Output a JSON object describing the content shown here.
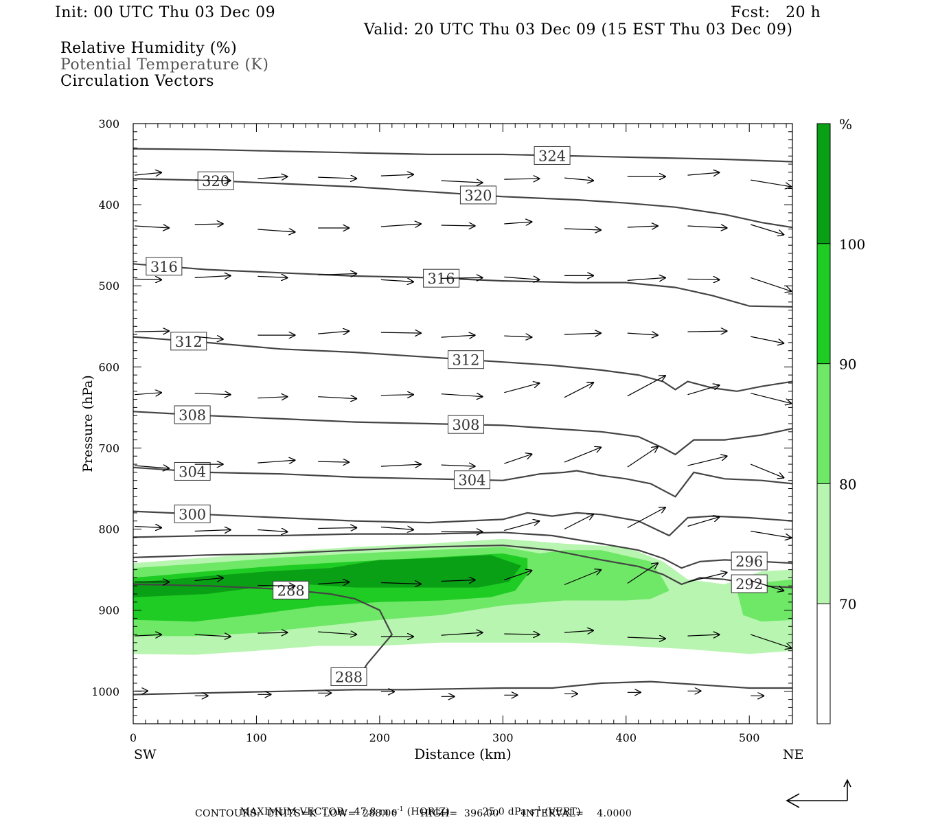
{
  "header": {
    "init": "Init: 00 UTC Thu 03 Dec 09",
    "fcst": "Fcst:   20 h",
    "valid": "Valid: 20 UTC Thu 03 Dec 09 (15 EST Thu 03 Dec 09)"
  },
  "legend": {
    "fields": [
      "Relative Humidity (%)",
      "Potential Temperature (K)",
      "Circulation Vectors"
    ]
  },
  "footer": {
    "max_vector_label": "MAXIMUM VECTOR:",
    "max_vector_horiz_value": "47.8",
    "max_vector_horiz_unit": "m s",
    "max_vector_horiz_kind": "(HORIZ)",
    "max_vector_vert_value": "25.0",
    "max_vector_vert_unit": "dPa s",
    "max_vector_vert_kind": "(VERT)",
    "unit_exponent": "-1",
    "contours": "CONTOURS:  UNITS=K  LOW=  288.00       HIGH=  396.00       INTERVAL=    4.0000"
  },
  "colors": {
    "rh_70_80": "#b8f5b0",
    "rh_80_90": "#6ee866",
    "rh_90_100": "#1fcc24",
    "rh_100": "#0aa016",
    "contour": "#444444"
  },
  "chart_data": {
    "type": "cross-section",
    "xlabel": "Distance (km)",
    "ylabel": "Pressure (hPa)",
    "x_left_label": "SW",
    "x_right_label": "NE",
    "xlim": [
      0,
      535
    ],
    "ylim": [
      1040,
      300
    ],
    "x_ticks": [
      0,
      100,
      200,
      300,
      400,
      500
    ],
    "y_ticks": [
      300,
      400,
      500,
      600,
      700,
      800,
      900,
      1000
    ],
    "colorbar": {
      "unit": "%",
      "levels": [
        70,
        80,
        90,
        100
      ],
      "tick_labels": [
        "70",
        "80",
        "90",
        "100"
      ],
      "bands": [
        {
          "from": 60,
          "to": 70,
          "color": "#ffffff"
        },
        {
          "from": 70,
          "to": 80,
          "color": "#b8f5b0"
        },
        {
          "from": 80,
          "to": 90,
          "color": "#6ee866"
        },
        {
          "from": 90,
          "to": 100,
          "color": "#1fcc24"
        },
        {
          "from": 100,
          "to": 110,
          "color": "#0aa016"
        }
      ]
    },
    "rh_regions": [
      {
        "level": 70,
        "color": "#b8f5b0",
        "top": [
          [
            0,
            842
          ],
          [
            60,
            835
          ],
          [
            120,
            828
          ],
          [
            180,
            822
          ],
          [
            240,
            818
          ],
          [
            300,
            812
          ],
          [
            350,
            818
          ],
          [
            400,
            822
          ],
          [
            430,
            840
          ],
          [
            450,
            862
          ],
          [
            480,
            868
          ],
          [
            510,
            852
          ],
          [
            535,
            850
          ]
        ],
        "bottom": [
          [
            535,
            950
          ],
          [
            500,
            954
          ],
          [
            450,
            948
          ],
          [
            400,
            944
          ],
          [
            350,
            940
          ],
          [
            300,
            940
          ],
          [
            250,
            940
          ],
          [
            200,
            944
          ],
          [
            150,
            944
          ],
          [
            100,
            950
          ],
          [
            50,
            955
          ],
          [
            0,
            954
          ]
        ]
      },
      {
        "level": 80,
        "color": "#6ee866",
        "top": [
          [
            0,
            848
          ],
          [
            60,
            842
          ],
          [
            120,
            835
          ],
          [
            180,
            830
          ],
          [
            240,
            826
          ],
          [
            300,
            822
          ],
          [
            330,
            830
          ],
          [
            350,
            826
          ],
          [
            380,
            826
          ],
          [
            420,
            840
          ],
          [
            430,
            862
          ],
          [
            435,
            876
          ],
          [
            420,
            886
          ],
          [
            400,
            888
          ],
          [
            350,
            888
          ],
          [
            300,
            894
          ],
          [
            250,
            906
          ],
          [
            200,
            912
          ],
          [
            150,
            920
          ],
          [
            100,
            928
          ],
          [
            50,
            932
          ],
          [
            0,
            932
          ]
        ],
        "bottom": []
      },
      {
        "level": 80,
        "color": "#6ee866",
        "top": [
          [
            490,
            876
          ],
          [
            510,
            866
          ],
          [
            535,
            862
          ]
        ],
        "bottom": [
          [
            535,
            912
          ],
          [
            510,
            914
          ],
          [
            495,
            906
          ]
        ]
      },
      {
        "level": 90,
        "color": "#1fcc24",
        "top": [
          [
            0,
            860
          ],
          [
            60,
            852
          ],
          [
            120,
            845
          ],
          [
            180,
            840
          ],
          [
            230,
            836
          ],
          [
            300,
            830
          ],
          [
            320,
            836
          ],
          [
            320,
            856
          ],
          [
            310,
            876
          ],
          [
            290,
            884
          ],
          [
            250,
            888
          ],
          [
            200,
            890
          ],
          [
            150,
            895
          ],
          [
            100,
            905
          ],
          [
            50,
            914
          ],
          [
            0,
            912
          ]
        ],
        "bottom": []
      },
      {
        "level": 100,
        "color": "#0aa016",
        "top": [
          [
            0,
            866
          ],
          [
            60,
            858
          ],
          [
            110,
            852
          ],
          [
            160,
            848
          ],
          [
            200,
            838
          ],
          [
            240,
            836
          ],
          [
            290,
            832
          ],
          [
            315,
            845
          ],
          [
            305,
            865
          ],
          [
            280,
            872
          ],
          [
            240,
            872
          ],
          [
            180,
            872
          ],
          [
            140,
            868
          ],
          [
            100,
            872
          ],
          [
            60,
            880
          ],
          [
            0,
            884
          ]
        ],
        "bottom": []
      }
    ],
    "theta_contours": [
      {
        "value": 324,
        "label_x": 340,
        "points": [
          [
            0,
            331
          ],
          [
            60,
            332
          ],
          [
            120,
            334
          ],
          [
            180,
            336
          ],
          [
            240,
            338
          ],
          [
            300,
            338
          ],
          [
            360,
            340
          ],
          [
            420,
            342
          ],
          [
            480,
            344
          ],
          [
            535,
            347
          ]
        ]
      },
      {
        "value": 320,
        "label_x": 280,
        "points": [
          [
            0,
            368
          ],
          [
            60,
            370
          ],
          [
            120,
            374
          ],
          [
            180,
            378
          ],
          [
            240,
            384
          ],
          [
            300,
            390
          ],
          [
            360,
            394
          ],
          [
            400,
            398
          ],
          [
            440,
            403
          ],
          [
            480,
            412
          ],
          [
            510,
            422
          ],
          [
            535,
            428
          ]
        ]
      },
      {
        "value": 320,
        "label_x": 67,
        "points": []
      },
      {
        "value": 316,
        "label_x": 250,
        "points": [
          [
            0,
            473
          ],
          [
            60,
            480
          ],
          [
            120,
            484
          ],
          [
            180,
            488
          ],
          [
            240,
            490
          ],
          [
            300,
            494
          ],
          [
            360,
            496
          ],
          [
            400,
            496
          ],
          [
            440,
            502
          ],
          [
            470,
            512
          ],
          [
            500,
            525
          ],
          [
            535,
            526
          ]
        ]
      },
      {
        "value": 316,
        "label_x": 25,
        "points": []
      },
      {
        "value": 312,
        "label_x": 270,
        "points": [
          [
            0,
            563
          ],
          [
            60,
            570
          ],
          [
            120,
            578
          ],
          [
            180,
            582
          ],
          [
            240,
            588
          ],
          [
            300,
            594
          ],
          [
            340,
            598
          ],
          [
            380,
            604
          ],
          [
            410,
            610
          ],
          [
            430,
            618
          ],
          [
            440,
            628
          ],
          [
            450,
            618
          ],
          [
            470,
            626
          ],
          [
            490,
            630
          ],
          [
            510,
            624
          ],
          [
            535,
            618
          ]
        ]
      },
      {
        "value": 312,
        "label_x": 45,
        "points": []
      },
      {
        "value": 308,
        "label_x": 270,
        "points": [
          [
            0,
            655
          ],
          [
            60,
            660
          ],
          [
            120,
            664
          ],
          [
            180,
            668
          ],
          [
            240,
            670
          ],
          [
            300,
            672
          ],
          [
            340,
            676
          ],
          [
            380,
            680
          ],
          [
            410,
            686
          ],
          [
            430,
            700
          ],
          [
            440,
            708
          ],
          [
            455,
            690
          ],
          [
            480,
            690
          ],
          [
            510,
            684
          ],
          [
            535,
            676
          ]
        ]
      },
      {
        "value": 308,
        "label_x": 48,
        "points": []
      },
      {
        "value": 304,
        "label_x": 275,
        "points": [
          [
            0,
            724
          ],
          [
            60,
            730
          ],
          [
            120,
            732
          ],
          [
            180,
            736
          ],
          [
            240,
            738
          ],
          [
            300,
            740
          ],
          [
            330,
            732
          ],
          [
            350,
            730
          ],
          [
            360,
            728
          ],
          [
            380,
            734
          ],
          [
            400,
            738
          ],
          [
            420,
            744
          ],
          [
            440,
            760
          ],
          [
            455,
            730
          ],
          [
            480,
            738
          ],
          [
            510,
            740
          ],
          [
            535,
            744
          ]
        ]
      },
      {
        "value": 304,
        "label_x": 48,
        "points": []
      },
      {
        "value": 300,
        "label_x": 48,
        "points": [
          [
            0,
            778
          ],
          [
            60,
            782
          ],
          [
            120,
            786
          ],
          [
            180,
            790
          ],
          [
            240,
            792
          ],
          [
            300,
            788
          ],
          [
            320,
            780
          ],
          [
            340,
            784
          ],
          [
            360,
            780
          ],
          [
            380,
            782
          ],
          [
            410,
            790
          ],
          [
            435,
            808
          ],
          [
            450,
            786
          ],
          [
            470,
            784
          ],
          [
            500,
            786
          ],
          [
            535,
            790
          ]
        ]
      },
      {
        "value": 296,
        "label_x": 500,
        "points": [
          [
            0,
            810
          ],
          [
            60,
            808
          ],
          [
            120,
            808
          ],
          [
            180,
            806
          ],
          [
            240,
            806
          ],
          [
            300,
            804
          ],
          [
            340,
            808
          ],
          [
            380,
            818
          ],
          [
            410,
            826
          ],
          [
            430,
            836
          ],
          [
            445,
            848
          ],
          [
            460,
            840
          ],
          [
            480,
            838
          ],
          [
            510,
            840
          ],
          [
            535,
            842
          ]
        ]
      },
      {
        "value": 292,
        "label_x": 500,
        "points": [
          [
            0,
            835
          ],
          [
            60,
            832
          ],
          [
            120,
            830
          ],
          [
            180,
            826
          ],
          [
            240,
            822
          ],
          [
            300,
            820
          ],
          [
            340,
            826
          ],
          [
            380,
            838
          ],
          [
            410,
            846
          ],
          [
            430,
            856
          ],
          [
            445,
            868
          ],
          [
            460,
            860
          ],
          [
            480,
            862
          ],
          [
            510,
            870
          ],
          [
            535,
            872
          ]
        ]
      },
      {
        "value": 288,
        "label_x": 128,
        "points": [
          [
            0,
            868
          ],
          [
            60,
            870
          ],
          [
            120,
            874
          ],
          [
            160,
            880
          ],
          [
            180,
            886
          ],
          [
            200,
            900
          ],
          [
            210,
            930
          ],
          [
            190,
            966
          ],
          [
            180,
            990
          ]
        ]
      },
      {
        "value": 288,
        "label_x": 175,
        "points": [
          [
            0,
            1004
          ],
          [
            60,
            1002
          ],
          [
            120,
            1000
          ],
          [
            180,
            998
          ],
          [
            220,
            998
          ],
          [
            260,
            997
          ],
          [
            300,
            996
          ],
          [
            340,
            996
          ],
          [
            380,
            990
          ],
          [
            420,
            988
          ],
          [
            460,
            992
          ],
          [
            500,
            996
          ],
          [
            535,
            996
          ]
        ]
      }
    ],
    "vectors_note": "circulation vectors shown as arrows (u, w) at grid points; max horiz 47.8 m s-1, max vert 25.0 dPa s-1"
  }
}
